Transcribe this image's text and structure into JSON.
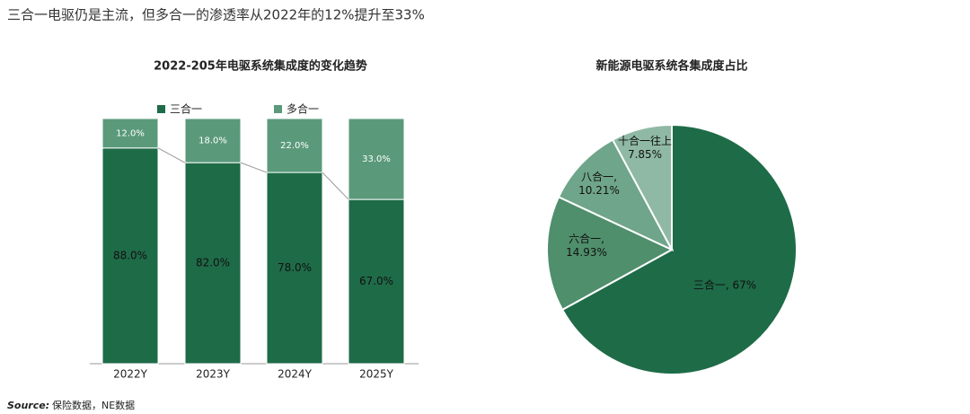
{
  "title": "三合一电驱仍是主流，但多合一的渗透率从2022年的12%提升至33%",
  "source_label": "Source:",
  "source": "保险数据，NE数据",
  "chart_data": [
    {
      "type": "stacked_bar",
      "title": "2022-205年电驱系统集成度的变化趋势",
      "categories": [
        "2022Y",
        "2023Y",
        "2024Y",
        "2025Y"
      ],
      "ylim": [
        0,
        100
      ],
      "series": [
        {
          "name": "三合一",
          "color": "#1e6b48",
          "values": [
            88,
            82,
            78,
            67
          ],
          "value_labels": [
            "88.0%",
            "82.0%",
            "78.0%",
            "67.0%"
          ]
        },
        {
          "name": "多合一",
          "color": "#5a9a7a",
          "values": [
            12,
            18,
            22,
            33
          ],
          "value_labels": [
            "12.0%",
            "18.0%",
            "22.0%",
            "33.0%"
          ]
        }
      ]
    },
    {
      "type": "pie",
      "title": "新能源电驱系统各集成度占比",
      "values": [
        67,
        14.93,
        10.21,
        7.85
      ],
      "colors": [
        "#1e6b48",
        "#4f8f6c",
        "#6fa58a",
        "#8fb9a4"
      ],
      "value_labels": [
        [
          "三合一, 67%"
        ],
        [
          "六合一,",
          "14.93%"
        ],
        [
          "八合一,",
          "10.21%"
        ],
        [
          "十合一往上",
          "7.85%"
        ]
      ]
    }
  ]
}
